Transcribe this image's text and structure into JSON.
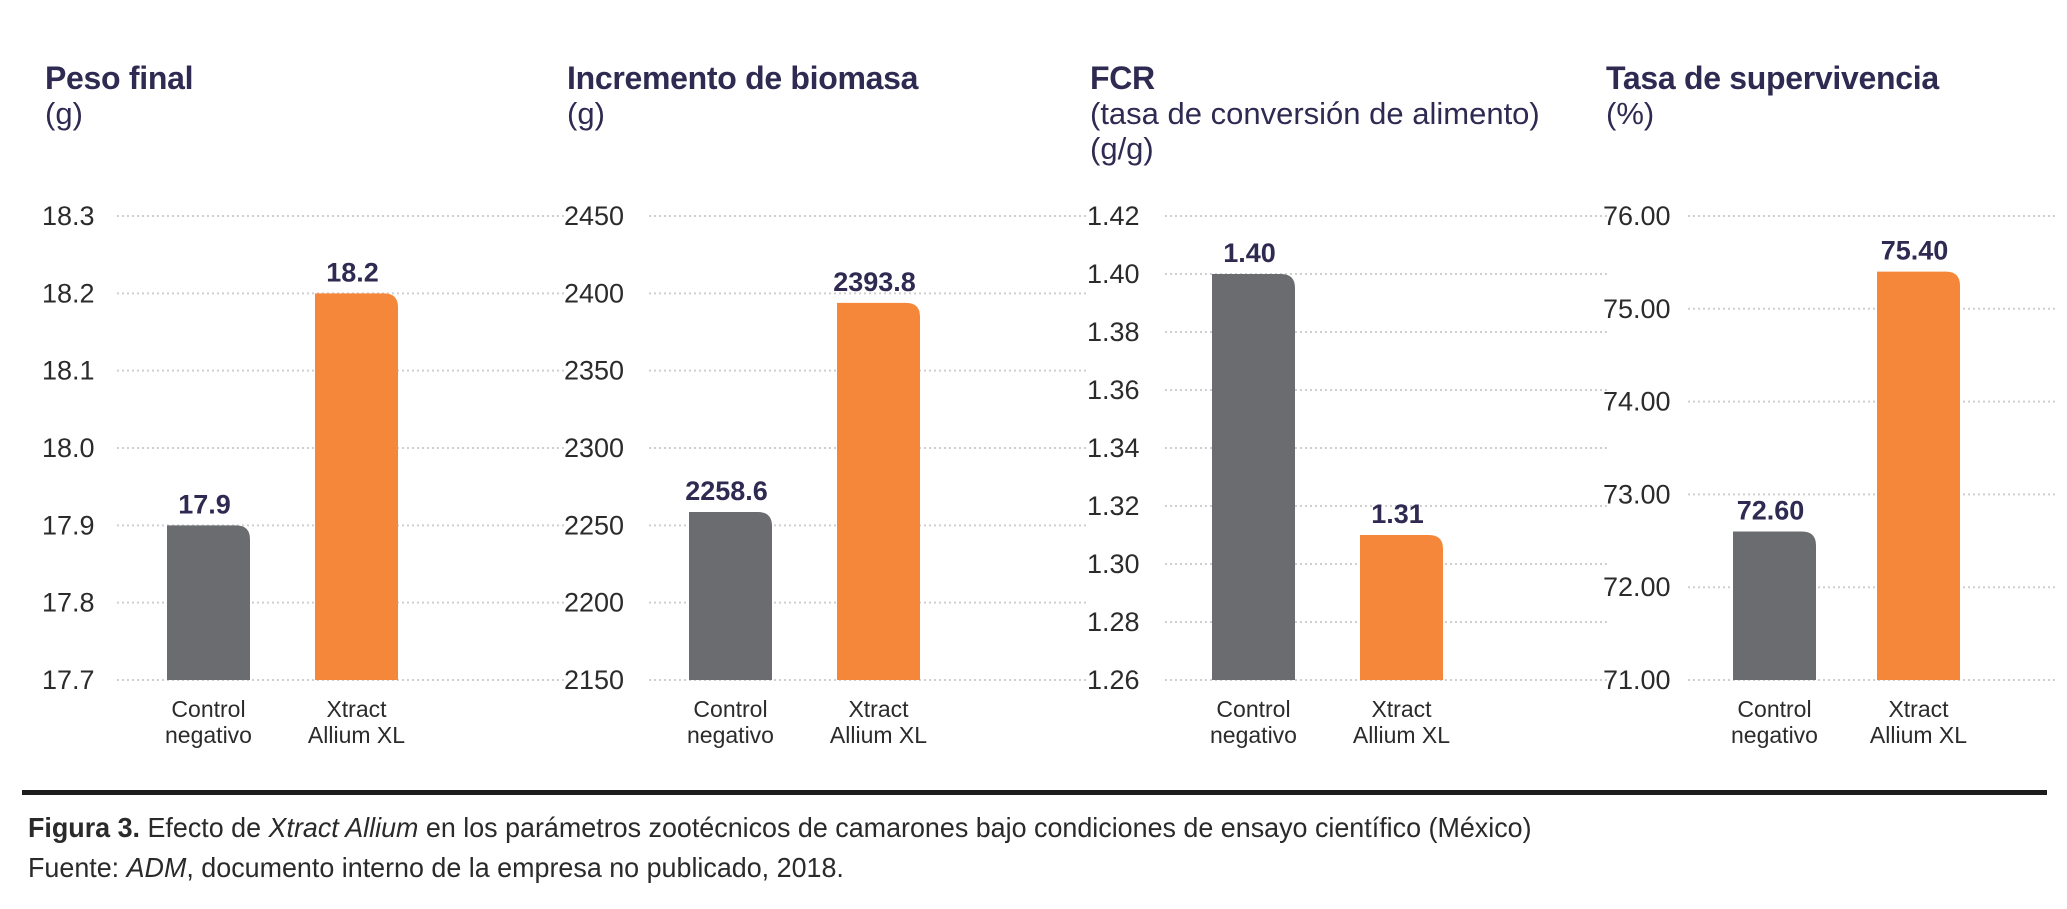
{
  "chart_data": [
    {
      "type": "bar",
      "title": "Peso final",
      "unit_lines": [
        "(g)"
      ],
      "categories": [
        [
          "Control",
          "negativo"
        ],
        [
          "Xtract",
          "Allium XL"
        ]
      ],
      "values": [
        17.9,
        18.2
      ],
      "value_labels": [
        "17.9",
        "18.2"
      ],
      "colors": [
        "#6b6c70",
        "#f5873a"
      ],
      "ylim": [
        17.7,
        18.3
      ],
      "yticks": [
        17.7,
        17.8,
        17.9,
        18.0,
        18.1,
        18.2,
        18.3
      ],
      "ytick_labels": [
        "17.7",
        "17.8",
        "17.9",
        "18.0",
        "18.1",
        "18.2",
        "18.3"
      ],
      "grid": true
    },
    {
      "type": "bar",
      "title": "Incremento de biomasa",
      "unit_lines": [
        "(g)"
      ],
      "categories": [
        [
          "Control",
          "negativo"
        ],
        [
          "Xtract",
          "Allium XL"
        ]
      ],
      "values": [
        2258.6,
        2393.8
      ],
      "value_labels": [
        "2258.6",
        "2393.8"
      ],
      "colors": [
        "#6b6c70",
        "#f5873a"
      ],
      "ylim": [
        2150,
        2450
      ],
      "yticks": [
        2150,
        2200,
        2250,
        2300,
        2350,
        2400,
        2450
      ],
      "ytick_labels": [
        "2150",
        "2200",
        "2250",
        "2300",
        "2350",
        "2400",
        "2450"
      ],
      "grid": true
    },
    {
      "type": "bar",
      "title": "FCR",
      "unit_lines": [
        "(tasa de conversión de alimento)",
        "(g/g)"
      ],
      "categories": [
        [
          "Control",
          "negativo"
        ],
        [
          "Xtract",
          "Allium XL"
        ]
      ],
      "values": [
        1.4,
        1.31
      ],
      "value_labels": [
        "1.40",
        "1.31"
      ],
      "colors": [
        "#6b6c70",
        "#f5873a"
      ],
      "ylim": [
        1.26,
        1.42
      ],
      "yticks": [
        1.26,
        1.28,
        1.3,
        1.32,
        1.34,
        1.36,
        1.38,
        1.4,
        1.42
      ],
      "ytick_labels": [
        "1.26",
        "1.28",
        "1.30",
        "1.32",
        "1.34",
        "1.36",
        "1.38",
        "1.40",
        "1.42"
      ],
      "grid": true
    },
    {
      "type": "bar",
      "title": "Tasa de supervivencia",
      "unit_lines": [
        "(%)"
      ],
      "categories": [
        [
          "Control",
          "negativo"
        ],
        [
          "Xtract",
          "Allium XL"
        ]
      ],
      "values": [
        72.6,
        75.4
      ],
      "value_labels": [
        "72.60",
        "75.40"
      ],
      "colors": [
        "#6b6c70",
        "#f5873a"
      ],
      "ylim": [
        71.0,
        76.0
      ],
      "yticks": [
        71,
        72,
        73,
        74,
        75,
        76
      ],
      "ytick_labels": [
        "71.00",
        "72.00",
        "73.00",
        "74.00",
        "75.00",
        "76.00"
      ],
      "grid": true
    }
  ],
  "caption": {
    "figure_number": "Figura 3.",
    "line1_pre": " Efecto de ",
    "line1_em": "Xtract Allium",
    "line1_post": " en los parámetros zootécnicos de camarones bajo condiciones de ensayo científico (México)",
    "line2_pre": "Fuente: ",
    "line2_em": "ADM",
    "line2_post": ", documento interno de la empresa no publicado, 2018."
  }
}
